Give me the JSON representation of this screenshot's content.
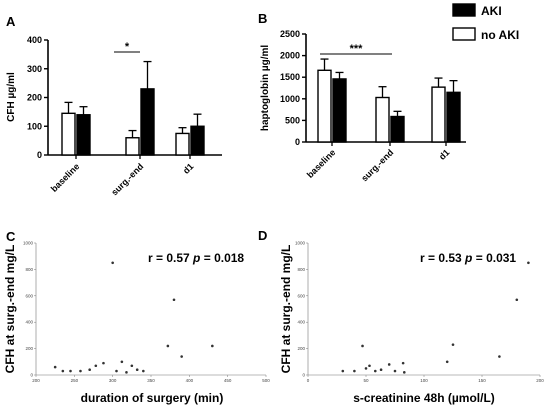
{
  "legend": [
    {
      "label": "AKI",
      "color": "#000000"
    },
    {
      "label": "no AKI",
      "color": "#ffffff"
    }
  ],
  "chart_data": [
    {
      "panel": "A",
      "type": "bar",
      "ylabel": "CFH µg/ml",
      "ylim": [
        0,
        400
      ],
      "yticks": [
        0,
        100,
        200,
        300,
        400
      ],
      "categories": [
        "baseline",
        "surg.-end",
        "d1"
      ],
      "series": [
        {
          "name": "no AKI",
          "values": [
            145,
            60,
            75
          ],
          "errors": [
            38,
            25,
            20
          ]
        },
        {
          "name": "AKI",
          "values": [
            140,
            230,
            100
          ],
          "errors": [
            28,
            95,
            42
          ]
        }
      ],
      "annotation": {
        "text": "*",
        "between": "surg.-end"
      }
    },
    {
      "panel": "B",
      "type": "bar",
      "ylabel": "haptoglobin µg/ml",
      "ylim": [
        0,
        2500
      ],
      "yticks": [
        0,
        500,
        1000,
        1500,
        2000,
        2500
      ],
      "categories": [
        "baseline",
        "surg.-end",
        "d1"
      ],
      "series": [
        {
          "name": "no AKI",
          "values": [
            1660,
            1030,
            1270
          ],
          "errors": [
            260,
            250,
            210
          ]
        },
        {
          "name": "AKI",
          "values": [
            1460,
            590,
            1150
          ],
          "errors": [
            150,
            120,
            270
          ]
        }
      ],
      "annotation": {
        "text": "***",
        "between": "baseline-surg.-end"
      }
    },
    {
      "panel": "C",
      "type": "scatter",
      "xlabel": "duration of surgery (min)",
      "ylabel": "CFH at surg.-end mg/L",
      "xlim": [
        200,
        500
      ],
      "ylim": [
        0,
        1000
      ],
      "xticks": [
        200,
        250,
        300,
        350,
        400,
        450,
        500
      ],
      "yticks": [
        0,
        200,
        400,
        600,
        800,
        1000
      ],
      "points": [
        [
          225,
          60
        ],
        [
          235,
          30
        ],
        [
          245,
          30
        ],
        [
          258,
          30
        ],
        [
          270,
          40
        ],
        [
          278,
          70
        ],
        [
          288,
          90
        ],
        [
          305,
          30
        ],
        [
          312,
          100
        ],
        [
          318,
          20
        ],
        [
          325,
          70
        ],
        [
          332,
          40
        ],
        [
          340,
          30
        ],
        [
          372,
          220
        ],
        [
          380,
          570
        ],
        [
          390,
          140
        ],
        [
          430,
          220
        ],
        [
          300,
          850
        ]
      ],
      "stat": {
        "r": "r = 0.57",
        "p_label": "p",
        "p": "= 0.018"
      }
    },
    {
      "panel": "D",
      "type": "scatter",
      "xlabel": "s-creatinine 48h (µmol/L)",
      "ylabel": "CFH at surg.-end mg/L",
      "xlim": [
        0,
        200
      ],
      "ylim": [
        0,
        1000
      ],
      "xticks": [
        0,
        50,
        100,
        150,
        200
      ],
      "yticks": [
        0,
        200,
        400,
        600,
        800,
        1000
      ],
      "points": [
        [
          30,
          30
        ],
        [
          40,
          30
        ],
        [
          47,
          220
        ],
        [
          50,
          50
        ],
        [
          53,
          70
        ],
        [
          58,
          30
        ],
        [
          63,
          40
        ],
        [
          70,
          80
        ],
        [
          75,
          30
        ],
        [
          82,
          90
        ],
        [
          83,
          20
        ],
        [
          120,
          100
        ],
        [
          125,
          230
        ],
        [
          165,
          140
        ],
        [
          180,
          570
        ],
        [
          190,
          850
        ]
      ],
      "stat": {
        "r": "r = 0.53",
        "p_label": "p",
        "p": "= 0.031"
      }
    }
  ]
}
